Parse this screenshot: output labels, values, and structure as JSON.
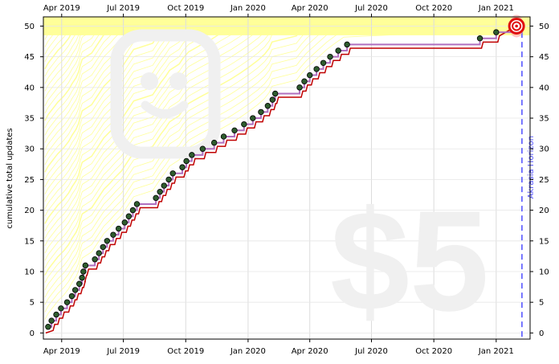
{
  "chart_data": {
    "type": "line",
    "ylabel": "cumulative total updates",
    "xlim": [
      "2019-03-05",
      "2021-02-20"
    ],
    "ylim": [
      -1,
      51.5
    ],
    "x_ticks": [
      {
        "date": "2019-04-01",
        "label": "Apr 2019"
      },
      {
        "date": "2019-07-01",
        "label": "Jul 2019"
      },
      {
        "date": "2019-10-01",
        "label": "Oct 2019"
      },
      {
        "date": "2020-01-01",
        "label": "Jan 2020"
      },
      {
        "date": "2020-04-01",
        "label": "Apr 2020"
      },
      {
        "date": "2020-07-01",
        "label": "Jul 2020"
      },
      {
        "date": "2020-10-01",
        "label": "Oct 2020"
      },
      {
        "date": "2021-01-01",
        "label": "Jan 2021"
      }
    ],
    "y_ticks": [
      0,
      5,
      10,
      15,
      20,
      25,
      30,
      35,
      40,
      45,
      50
    ],
    "goal_value": 50,
    "pledge_watermark": "$5",
    "horizon_label": "Akrasia Horizon",
    "horizon_date": "2021-02-08",
    "goal_date": "2021-01-31",
    "grid": true,
    "colors": {
      "datapoint": "#2e5c2e",
      "datapoint_outline": "#000000",
      "steps": "#b070c0",
      "road": "#c00000",
      "bullseye": "#e01010",
      "goal_band": "#ffff99",
      "horizon": "#4d4dff",
      "watermark": "#f0f0f0"
    },
    "points": [
      [
        "2019-03-12",
        1
      ],
      [
        "2019-03-17",
        2
      ],
      [
        "2019-03-24",
        3
      ],
      [
        "2019-03-31",
        4
      ],
      [
        "2019-04-09",
        5
      ],
      [
        "2019-04-16",
        6
      ],
      [
        "2019-04-21",
        7
      ],
      [
        "2019-04-27",
        8
      ],
      [
        "2019-05-01",
        9
      ],
      [
        "2019-05-03",
        10
      ],
      [
        "2019-05-06",
        11
      ],
      [
        "2019-05-20",
        12
      ],
      [
        "2019-05-26",
        13
      ],
      [
        "2019-06-01",
        14
      ],
      [
        "2019-06-07",
        15
      ],
      [
        "2019-06-16",
        16
      ],
      [
        "2019-06-24",
        17
      ],
      [
        "2019-07-03",
        18
      ],
      [
        "2019-07-09",
        19
      ],
      [
        "2019-07-15",
        20
      ],
      [
        "2019-07-21",
        21
      ],
      [
        "2019-08-18",
        22
      ],
      [
        "2019-08-24",
        23
      ],
      [
        "2019-08-30",
        24
      ],
      [
        "2019-09-06",
        25
      ],
      [
        "2019-09-12",
        26
      ],
      [
        "2019-09-26",
        27
      ],
      [
        "2019-10-02",
        28
      ],
      [
        "2019-10-10",
        29
      ],
      [
        "2019-10-26",
        30
      ],
      [
        "2019-11-12",
        31
      ],
      [
        "2019-11-26",
        32
      ],
      [
        "2019-12-12",
        33
      ],
      [
        "2019-12-26",
        34
      ],
      [
        "2020-01-08",
        35
      ],
      [
        "2020-01-20",
        36
      ],
      [
        "2020-01-30",
        37
      ],
      [
        "2020-02-06",
        38
      ],
      [
        "2020-02-10",
        39
      ],
      [
        "2020-03-17",
        40
      ],
      [
        "2020-03-24",
        41
      ],
      [
        "2020-04-01",
        42
      ],
      [
        "2020-04-11",
        43
      ],
      [
        "2020-04-21",
        44
      ],
      [
        "2020-05-01",
        45
      ],
      [
        "2020-05-13",
        46
      ],
      [
        "2020-05-26",
        47
      ],
      [
        "2020-12-08",
        48
      ],
      [
        "2021-01-01",
        49
      ]
    ]
  }
}
